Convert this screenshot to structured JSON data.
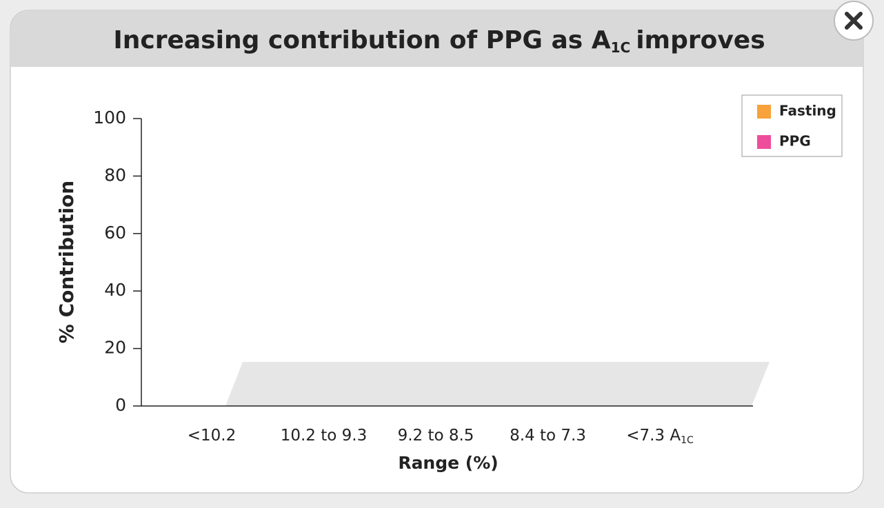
{
  "chart_data": {
    "type": "bar",
    "stacked": true,
    "title": "Increasing contribution of PPG as A",
    "title_subscript": "1C",
    "title_suffix": "improves",
    "x_label": "Range (%)",
    "y_label": "% Contribution",
    "categories": [
      "<10.2",
      "10.2 to 9.3",
      "9.2 to 8.5",
      "8.4 to 7.3",
      "<7.3 A"
    ],
    "category_subscripts": [
      null,
      null,
      null,
      null,
      "1C"
    ],
    "series": [
      {
        "name": "Fasting",
        "color": "#f7a23a",
        "values": [
          null,
          null,
          null,
          null,
          null
        ]
      },
      {
        "name": "PPG",
        "color": "#ee4d9b",
        "values": [
          null,
          null,
          null,
          null,
          null
        ]
      }
    ],
    "ylim": [
      0,
      100
    ],
    "yticks": [
      0,
      20,
      40,
      60,
      80,
      100
    ],
    "legend": "top-right"
  }
}
